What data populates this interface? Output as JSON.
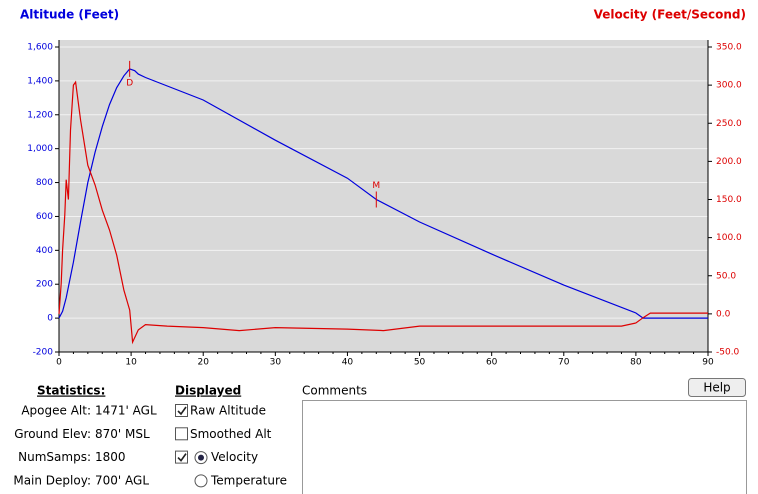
{
  "chart_data": {
    "type": "line",
    "title": "Altitude (Feet)",
    "title_right": "Velocity (Feet/Second)",
    "xlim": [
      0,
      90
    ],
    "xticks": [
      0,
      10,
      20,
      30,
      40,
      50,
      60,
      70,
      80,
      90
    ],
    "ylim": [
      -200,
      1600
    ],
    "yticks": [
      {
        "value": -200,
        "label": "-200"
      },
      0,
      200,
      400,
      600,
      800,
      {
        "value": 1000,
        "label": "1,000"
      },
      {
        "value": 1200,
        "label": "1,200"
      },
      {
        "value": 1400,
        "label": "1,400"
      },
      {
        "value": 1600,
        "label": "1,600"
      }
    ],
    "y2lim": [
      -50,
      350
    ],
    "y2ticks": [
      {
        "value": -50,
        "label": "-50.0"
      },
      {
        "value": 0,
        "label": "0.0"
      },
      {
        "value": 50,
        "label": "50.0"
      },
      {
        "value": 100,
        "label": "100.0"
      },
      {
        "value": 150,
        "label": "150.0"
      },
      {
        "value": 200,
        "label": "200.0"
      },
      {
        "value": 250,
        "label": "250.0"
      },
      {
        "value": 300,
        "label": "300.0"
      },
      {
        "value": 350,
        "label": "350.0"
      }
    ],
    "grid": true,
    "series": [
      {
        "color": "#0000dd",
        "axis": "y",
        "x": [
          0,
          0.5,
          1,
          2,
          3,
          4,
          5,
          6,
          7,
          8,
          9,
          9.8,
          10.5,
          11,
          12,
          20,
          30,
          40,
          44,
          50,
          60,
          70,
          80,
          81,
          90
        ],
        "values": [
          0,
          40,
          120,
          330,
          570,
          800,
          980,
          1130,
          1260,
          1360,
          1430,
          1471,
          1460,
          1440,
          1420,
          1287,
          1050,
          826,
          700,
          567,
          378,
          195,
          30,
          0,
          0
        ]
      },
      {
        "color": "#dd0000",
        "axis": "y2",
        "x": [
          0,
          0.3,
          0.5,
          0.8,
          1,
          1.3,
          1.6,
          2,
          2.3,
          3,
          4,
          5,
          6,
          7,
          8,
          9,
          9.8,
          10.2,
          11,
          12,
          15,
          20,
          25,
          30,
          35,
          40,
          45,
          50,
          60,
          70,
          78,
          80,
          81,
          82,
          83,
          90
        ],
        "values": [
          0,
          40,
          84,
          130,
          176,
          150,
          241,
          300,
          304,
          254,
          195,
          169,
          136,
          110,
          77,
          31,
          5,
          -37,
          -21,
          -14,
          -16,
          -18,
          -22,
          -18,
          -19,
          -20,
          -22,
          -16,
          -16,
          -16,
          -16,
          -12,
          -5,
          1,
          1,
          1
        ]
      }
    ],
    "annotations": [
      {
        "text": "D",
        "x": 9.8,
        "y": 1471
      },
      {
        "text": "M",
        "x": 44,
        "y": 700
      }
    ]
  },
  "statistics": {
    "title": "Statistics:",
    "rows": [
      [
        "Apogee Alt:",
        "1471' AGL"
      ],
      [
        "Ground Elev:",
        "870' MSL"
      ],
      [
        "NumSamps:",
        "1800"
      ],
      [
        "Main Deploy:",
        "700' AGL"
      ]
    ]
  },
  "displayed": {
    "title": "Displayed",
    "options": [
      {
        "label": "Raw Altitude",
        "checkbox": true
      },
      {
        "label": "Smoothed Alt",
        "checkbox": false
      },
      {
        "label": "Velocity",
        "checkbox": true,
        "radio": true
      },
      {
        "label": "Temperature",
        "radio": false
      }
    ]
  },
  "comments": {
    "label": "Comments"
  },
  "help_button": "Help"
}
